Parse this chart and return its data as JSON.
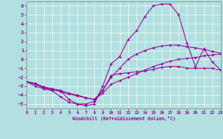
{
  "xlabel": "Windchill (Refroidissement éolien,°C)",
  "bg_color": "#b2e0e0",
  "grid_color": "#a0c8c8",
  "line_color": "#990099",
  "xlim": [
    0,
    23
  ],
  "ylim": [
    -5.5,
    6.5
  ],
  "yticks": [
    -5,
    -4,
    -3,
    -2,
    -1,
    0,
    1,
    2,
    3,
    4,
    5,
    6
  ],
  "xticks": [
    0,
    1,
    2,
    3,
    4,
    5,
    6,
    7,
    8,
    9,
    10,
    11,
    12,
    13,
    14,
    15,
    16,
    17,
    18,
    19,
    20,
    21,
    22,
    23
  ],
  "lines": [
    [
      -2.5,
      -3.0,
      -3.3,
      -3.5,
      -4.2,
      -4.8,
      -5.0,
      -5.0,
      -4.7,
      -3.5,
      -1.8,
      -1.6,
      -1.5,
      -1.4,
      -1.3,
      -1.1,
      -0.9,
      -0.8,
      -0.8,
      -1.0,
      -1.0,
      -1.0,
      -1.0,
      -1.2
    ],
    [
      -2.5,
      -2.8,
      -3.2,
      -3.4,
      -3.6,
      -3.9,
      -4.1,
      -4.3,
      -4.5,
      -3.8,
      -2.8,
      -2.4,
      -2.0,
      -1.6,
      -1.2,
      -0.8,
      -0.5,
      -0.2,
      0.0,
      0.1,
      0.2,
      0.4,
      0.5,
      0.6
    ],
    [
      -2.5,
      -2.7,
      -3.1,
      -3.3,
      -3.5,
      -3.8,
      -4.0,
      -4.3,
      -4.5,
      -3.5,
      -2.0,
      -1.0,
      0.0,
      0.6,
      1.0,
      1.3,
      1.5,
      1.6,
      1.6,
      1.4,
      1.3,
      1.1,
      0.9,
      0.7
    ],
    [
      -2.5,
      -2.7,
      -3.1,
      -3.3,
      -3.5,
      -4.5,
      -5.0,
      -5.2,
      -5.0,
      -3.0,
      -0.5,
      0.3,
      2.2,
      3.2,
      4.8,
      6.0,
      6.2,
      6.2,
      5.0,
      1.8,
      -0.8,
      1.2,
      -0.3,
      -1.2
    ]
  ]
}
